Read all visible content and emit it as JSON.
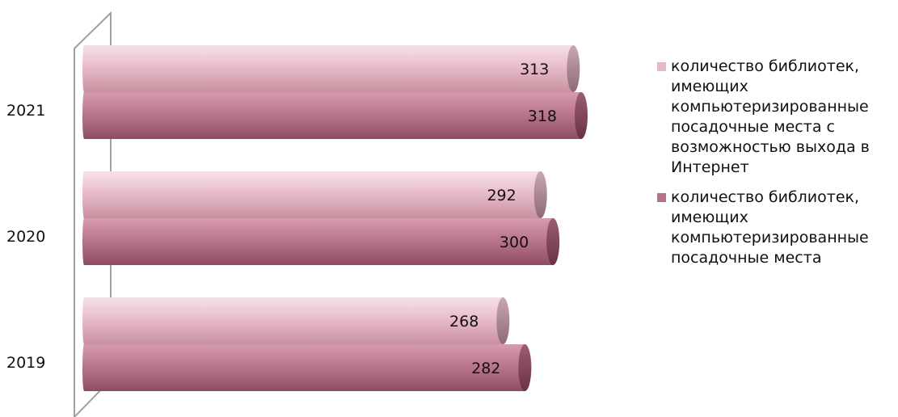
{
  "chart_data": {
    "type": "bar",
    "orientation": "horizontal",
    "categories": [
      "2021",
      "2020",
      "2019"
    ],
    "series": [
      {
        "name": "количество библиотек, имеющих компьютеризированные посадочные места с возможностью выхода в Интернет",
        "values": [
          313,
          292,
          268
        ],
        "color": "#e7b8c8"
      },
      {
        "name": "количество библиотек, имеющих компьютеризированные посадочные места",
        "values": [
          318,
          300,
          282
        ],
        "color": "#b9708a"
      }
    ],
    "legend_position": "right",
    "grid": false
  }
}
